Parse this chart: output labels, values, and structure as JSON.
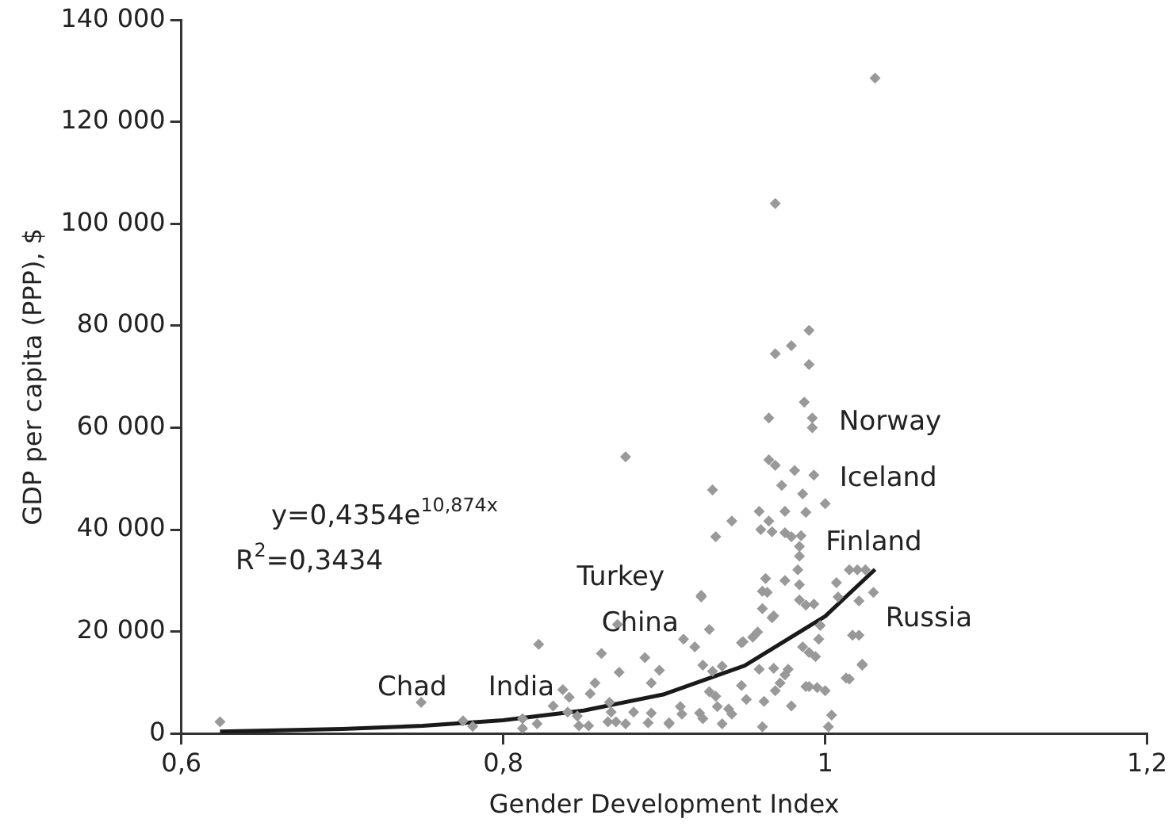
{
  "chart_data": {
    "type": "scatter",
    "xlabel": "Gender Development Index",
    "ylabel": "GDP per capita (PPP), $",
    "grid": false,
    "legend": false,
    "marker": "diamond",
    "xlim": [
      0.6,
      1.2
    ],
    "xticks": [
      {
        "value": 0.6,
        "label": "0,6"
      },
      {
        "value": 0.8,
        "label": "0,8"
      },
      1,
      {
        "value": 1.2,
        "label": "1,2"
      }
    ],
    "ylim": [
      0,
      140000
    ],
    "yticks": [
      0,
      {
        "value": 20000,
        "label": "20 000"
      },
      {
        "value": 40000,
        "label": "40 000"
      },
      {
        "value": 60000,
        "label": "60 000"
      },
      {
        "value": 80000,
        "label": "80 000"
      },
      {
        "value": 100000,
        "label": "100 000"
      },
      {
        "value": 120000,
        "label": "120 000"
      },
      {
        "value": 140000,
        "label": "140 000"
      }
    ],
    "series": [
      {
        "color": "#999999",
        "x": [
          0.624,
          0.749,
          0.775,
          0.781,
          0.812,
          0.812,
          0.821,
          0.822,
          0.831,
          0.837,
          0.841,
          0.84,
          0.846,
          0.847,
          0.853,
          0.854,
          0.857,
          0.861,
          0.866,
          0.867,
          0.865,
          0.87,
          0.872,
          0.876,
          0.876,
          0.871,
          0.881,
          0.888,
          0.892,
          0.897,
          0.89,
          0.892,
          0.903,
          0.923,
          0.928,
          0.919,
          0.912,
          0.903,
          0.91,
          0.911,
          0.922,
          0.924,
          0.93,
          0.924,
          0.928,
          0.932,
          0.933,
          0.936,
          0.936,
          0.94,
          0.942,
          0.948,
          0.951,
          0.949,
          0.955,
          0.958,
          0.961,
          0.961,
          0.963,
          0.967,
          0.959,
          0.962,
          0.961,
          0.968,
          0.972,
          0.969,
          0.975,
          0.977,
          0.979,
          0.975,
          0.984,
          0.984,
          0.988,
          0.993,
          0.986,
          0.99,
          0.994,
          0.997,
          0.996,
          0.988,
          0.99,
          0.995,
          1.0,
          1.004,
          1.002,
          1.007,
          1.008,
          1.015,
          1.02,
          1.025,
          1.03,
          1.017,
          1.021,
          1.023,
          1.015,
          0.985,
          0.984,
          0.975,
          0.932,
          0.987,
          0.965,
          0.992,
          0.992,
          0.965,
          0.969,
          0.981,
          0.993,
          0.973,
          0.986,
          1.0,
          0.93,
          0.959,
          0.975,
          0.988,
          0.942,
          0.965,
          0.96,
          0.967,
          0.979,
          0.984,
          0.983,
          0.964,
          0.923,
          0.968,
          1.021,
          0.948,
          1.013,
          1.023,
          1.031,
          0.969,
          0.99,
          0.979,
          0.969,
          0.99
        ],
        "values": [
          2300,
          6100,
          2500,
          1400,
          2900,
          1000,
          1900,
          17500,
          5400,
          8600,
          7100,
          4200,
          3400,
          1500,
          1500,
          7800,
          9900,
          15700,
          6100,
          4200,
          2300,
          2300,
          12000,
          1900,
          54300,
          21400,
          4200,
          14900,
          9900,
          12400,
          2100,
          4000,
          1900,
          27100,
          20400,
          17000,
          18500,
          2100,
          5300,
          3800,
          4000,
          13400,
          12200,
          2900,
          8200,
          7300,
          5300,
          13200,
          1900,
          4800,
          3800,
          9400,
          6700,
          18000,
          18900,
          19900,
          24500,
          27900,
          30400,
          22700,
          12600,
          6300,
          1300,
          12800,
          9900,
          8400,
          11500,
          12600,
          5400,
          30000,
          29200,
          26200,
          25200,
          25400,
          17000,
          15900,
          15100,
          21200,
          18500,
          9200,
          9200,
          9000,
          8400,
          3600,
          1300,
          29600,
          26800,
          32100,
          32100,
          32100,
          27700,
          19300,
          19300,
          13400,
          10700,
          38800,
          36700,
          39400,
          38600,
          65000,
          61900,
          61900,
          60000,
          53700,
          52600,
          51600,
          50700,
          48700,
          47000,
          45100,
          47800,
          43600,
          43600,
          43400,
          41700,
          41700,
          40000,
          39600,
          38600,
          34800,
          32100,
          27700,
          26800,
          23100,
          26000,
          17800,
          10900,
          13600,
          128600,
          104000,
          79100,
          76100,
          74500,
          72400
        ]
      },
      {
        "type": "line",
        "color": "#1a1a1a",
        "marker": "none",
        "x": [
          0.624,
          0.7,
          0.75,
          0.8,
          0.85,
          0.9,
          0.95,
          1.0,
          1.031
        ],
        "values": [
          400,
          900,
          1500,
          2600,
          4500,
          7700,
          13300,
          23000,
          32200
        ]
      }
    ],
    "annotations": [
      "y=0,4354e$^{10,874x}$",
      "R$^{2}$=0,3434",
      "Chad",
      "India",
      "Turkey",
      "China",
      "Norway",
      "Iceland",
      "Finland",
      "Russia"
    ]
  }
}
